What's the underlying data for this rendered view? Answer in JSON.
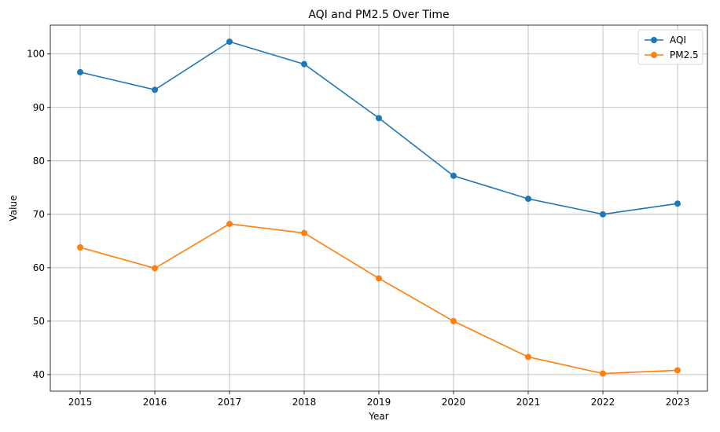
{
  "chart_data": {
    "type": "line",
    "title": "AQI and PM2.5 Over Time",
    "xlabel": "Year",
    "ylabel": "Value",
    "categories": [
      "2015",
      "2016",
      "2017",
      "2018",
      "2019",
      "2020",
      "2021",
      "2022",
      "2023"
    ],
    "x_tick_labels": [
      "2015",
      "2016",
      "2017",
      "2018",
      "2019",
      "2020",
      "2021",
      "2022",
      "2023"
    ],
    "y_tick_labels": [
      "40",
      "50",
      "60",
      "70",
      "80",
      "90",
      "100"
    ],
    "y_ticks": [
      40,
      50,
      60,
      70,
      80,
      90,
      100
    ],
    "xlim": [
      2014.6,
      2023.4
    ],
    "ylim": [
      36.9,
      105.4
    ],
    "grid": true,
    "legend_position": "top-right",
    "series": [
      {
        "name": "AQI",
        "color": "#1f77b4",
        "x": [
          2015,
          2016,
          2017,
          2018,
          2019,
          2020,
          2021,
          2022,
          2023
        ],
        "values": [
          96.6,
          93.3,
          102.3,
          98.1,
          88.0,
          77.2,
          72.9,
          70.0,
          72.0
        ]
      },
      {
        "name": "PM2.5",
        "color": "#ff7f0e",
        "x": [
          2015,
          2016,
          2017,
          2018,
          2019,
          2020,
          2021,
          2022,
          2023
        ],
        "values": [
          63.8,
          59.9,
          68.2,
          66.5,
          58.0,
          50.0,
          43.3,
          40.2,
          40.8
        ]
      }
    ]
  }
}
